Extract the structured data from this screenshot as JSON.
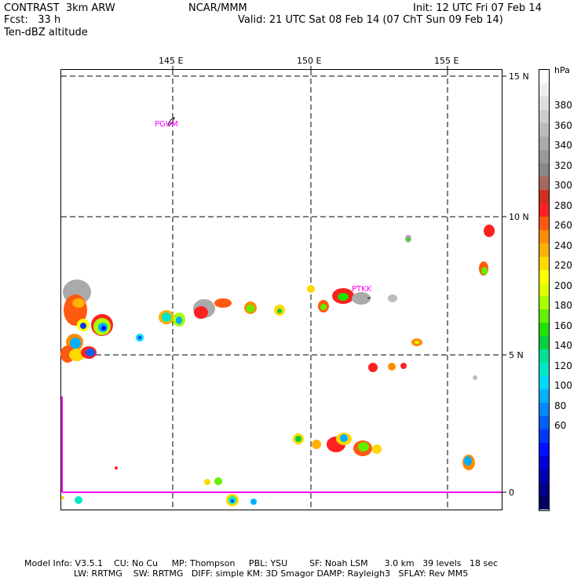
{
  "header": {
    "left_line1": "CONTRAST  3km ARW",
    "left_line2": "Fcst:   33 h",
    "left_line3": "Ten-dBZ altitude",
    "center": "NCAR/MMM",
    "init": "Init: 12 UTC Fri 07 Feb 14",
    "valid": "Valid: 21 UTC Sat 08 Feb 14 (07 ChT Sun 09 Feb 14)"
  },
  "axes": {
    "lon_labels": [
      "145 E",
      "150 E",
      "155 E"
    ],
    "lat_labels": [
      "15 N",
      "10 N",
      "5 N",
      "0"
    ]
  },
  "stations": [
    "PGUM",
    "PTKK"
  ],
  "colorbar": {
    "unit": "hPa",
    "labels": [
      "380",
      "360",
      "340",
      "320",
      "300",
      "280",
      "260",
      "240",
      "220",
      "200",
      "180",
      "160",
      "140",
      "120",
      "100",
      "80",
      "60"
    ],
    "colors": [
      "#ffffff",
      "#eeeeee",
      "#dddddd",
      "#cccccc",
      "#bbbbbb",
      "#aaaaaa",
      "#999999",
      "#888888",
      "#a86660",
      "#d03020",
      "#ff2020",
      "#ff5a10",
      "#ff8c00",
      "#ffb000",
      "#ffd800",
      "#ffff00",
      "#ddff00",
      "#a8ff00",
      "#60f000",
      "#20e000",
      "#00d040",
      "#00e090",
      "#00e8c8",
      "#00d8ff",
      "#00b0ff",
      "#0088ff",
      "#0060ff",
      "#0038ff",
      "#0010ff",
      "#0000d8",
      "#0000b0",
      "#000088",
      "#000060"
    ]
  },
  "footer": {
    "line1": "Model Info: V3.5.1    CU: No Cu     MP: Thompson     PBL: YSU        SF: Noah LSM      3.0 km   39 levels   18 sec",
    "line2": "LW: RRTMG    SW: RRTMG   DIFF: simple KM: 3D Smagor DAMP: Rayleigh3   SFLAY: Rev MM5"
  }
}
